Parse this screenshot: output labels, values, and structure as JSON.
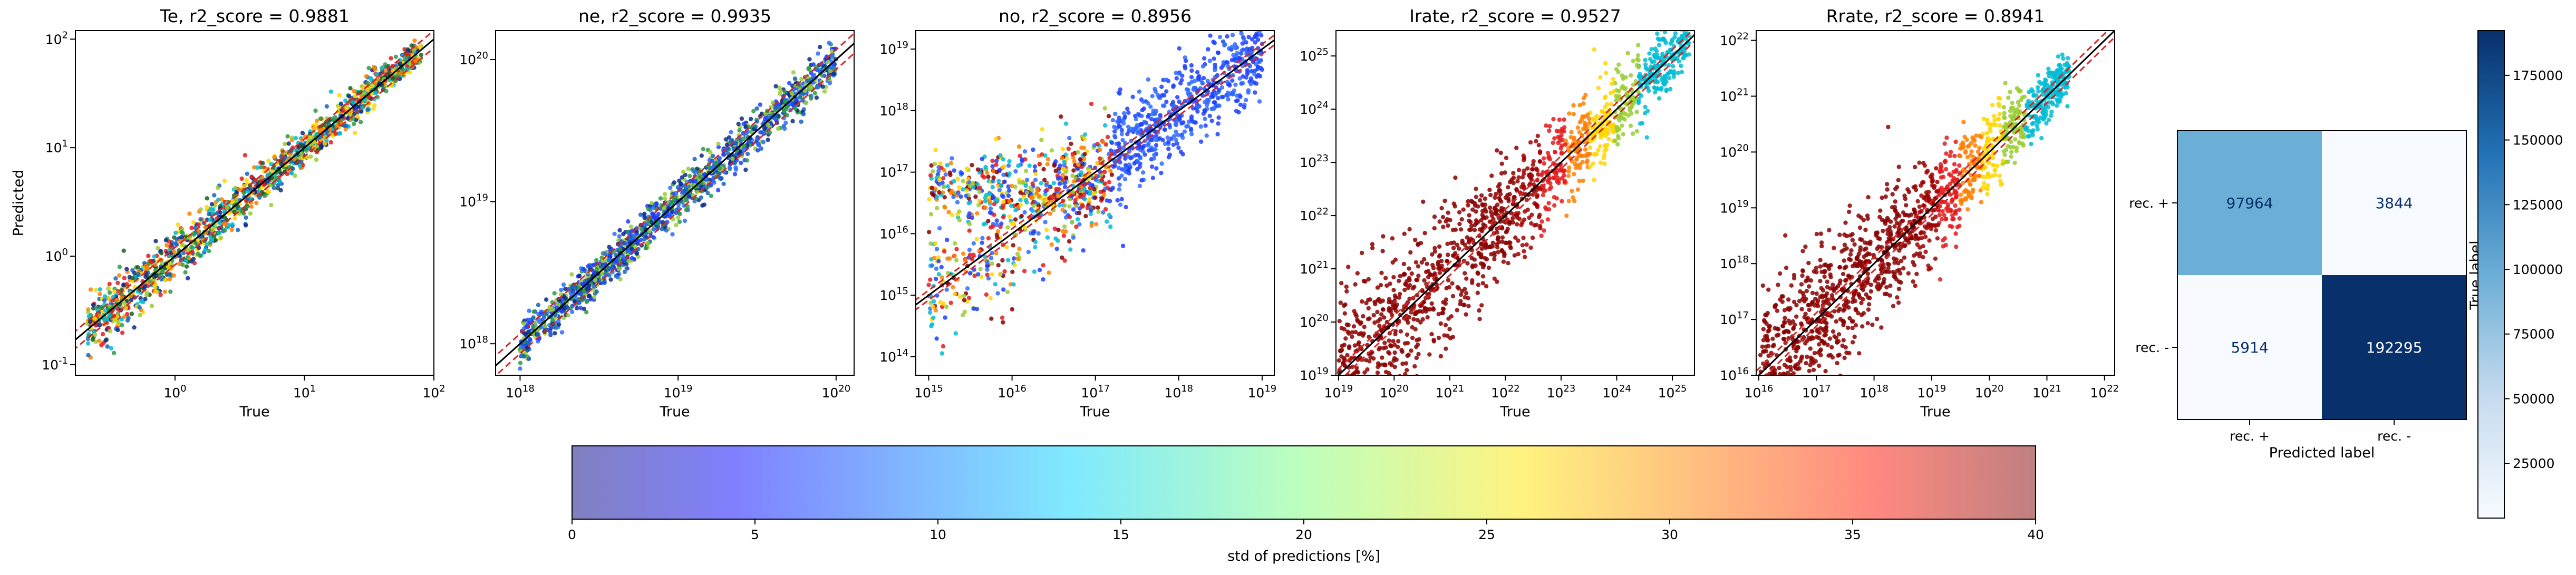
{
  "figure": {
    "colorbar_label": "std of predictions [%]",
    "colorbar_ticks": [
      "0",
      "5",
      "10",
      "15",
      "20",
      "25",
      "30",
      "35",
      "40"
    ],
    "colormap": "jet (alpha 0.5)",
    "cm_colorbar_ticks": [
      "25000",
      "50000",
      "75000",
      "100000",
      "125000",
      "150000",
      "175000"
    ]
  },
  "chart_data": [
    {
      "type": "scatter",
      "title": "Te, r2_score = 0.9881",
      "xlabel": "True",
      "ylabel": "Predicted",
      "xscale": "log",
      "yscale": "log",
      "xlim": [
        0.17,
        100
      ],
      "ylim": [
        0.08,
        120
      ],
      "x_ticks": [
        {
          "v": 1,
          "label": "10^0"
        },
        {
          "v": 10,
          "label": "10^1"
        },
        {
          "v": 100,
          "label": "10^2"
        }
      ],
      "y_ticks": [
        {
          "v": 0.1,
          "label": "10^-1"
        },
        {
          "v": 1,
          "label": "10^0"
        },
        {
          "v": 10,
          "label": "10^1"
        },
        {
          "v": 100,
          "label": "10^2"
        }
      ],
      "data_range": [
        0.21,
        80
      ],
      "spread_dex": 0.1,
      "band_dex": 0.08,
      "colors": [
        "#e41a1c",
        "#ff7f00",
        "#ffd700",
        "#9acd32",
        "#2e9a43",
        "#1b5e20",
        "#00bcd4",
        "#1565c0",
        "#0d2b8a"
      ],
      "density": "low-noise"
    },
    {
      "type": "scatter",
      "title": "ne, r2_score = 0.9935",
      "xlabel": "True",
      "ylabel": "",
      "xscale": "log",
      "yscale": "log",
      "xlim": [
        7e+17,
        1.3e+20
      ],
      "ylim": [
        6e+17,
        1.6e+20
      ],
      "x_ticks": [
        {
          "v": 1e+18,
          "label": "10^18"
        },
        {
          "v": 1e+19,
          "label": "10^19"
        },
        {
          "v": 1e+20,
          "label": "10^20"
        }
      ],
      "y_ticks": [
        {
          "v": 1e+18,
          "label": "10^18"
        },
        {
          "v": 1e+19,
          "label": "10^19"
        },
        {
          "v": 1e+20,
          "label": "10^20"
        }
      ],
      "data_range": [
        1e+18,
        1e+20
      ],
      "spread_dex": 0.07,
      "band_dex": 0.07,
      "colors": [
        "#0d2b8a",
        "#1565c0",
        "#1e40ff",
        "#2f6bff",
        "#2e9a43",
        "#9acd32"
      ],
      "density": "tight"
    },
    {
      "type": "scatter",
      "title": "no, r2_score = 0.8956",
      "xlabel": "True",
      "ylabel": "",
      "xscale": "log",
      "yscale": "log",
      "xlim": [
        700000000000000.0,
        1.4e+19
      ],
      "ylim": [
        50000000000000.0,
        2e+19
      ],
      "x_ticks": [
        {
          "v": 1000000000000000.0,
          "label": "10^15"
        },
        {
          "v": 1e+16,
          "label": "10^16"
        },
        {
          "v": 1e+17,
          "label": "10^17"
        },
        {
          "v": 1e+18,
          "label": "10^18"
        },
        {
          "v": 1e+19,
          "label": "10^19"
        }
      ],
      "y_ticks": [
        {
          "v": 100000000000000.0,
          "label": "10^14"
        },
        {
          "v": 1000000000000000.0,
          "label": "10^15"
        },
        {
          "v": 1e+16,
          "label": "10^16"
        },
        {
          "v": 1e+17,
          "label": "10^17"
        },
        {
          "v": 1e+18,
          "label": "10^18"
        },
        {
          "v": 1e+19,
          "label": "10^19"
        }
      ],
      "data_range": [
        1000000000000000.0,
        1e+19
      ],
      "spread_dex": 0.45,
      "band_dex": 0.08,
      "colors": [
        "#1e40ff",
        "#2f6bff",
        "#00bcd4",
        "#9acd32",
        "#ffd700",
        "#ff7f00",
        "#e41a1c",
        "#8b0000"
      ],
      "density": "plateau"
    },
    {
      "type": "scatter",
      "title": "Irate, r2_score = 0.9527",
      "xlabel": "True",
      "ylabel": "",
      "xscale": "log",
      "yscale": "log",
      "xlim": [
        9e+18,
        2.5e+25
      ],
      "ylim": [
        1e+19,
        3e+25
      ],
      "x_ticks": [
        {
          "v": 1e+19,
          "label": "10^19"
        },
        {
          "v": 1e+20,
          "label": "10^20"
        },
        {
          "v": 1e+21,
          "label": "10^21"
        },
        {
          "v": 1e+22,
          "label": "10^22"
        },
        {
          "v": 1e+23,
          "label": "10^23"
        },
        {
          "v": 1e+24,
          "label": "10^24"
        },
        {
          "v": 1e+25,
          "label": "10^25"
        }
      ],
      "y_ticks": [
        {
          "v": 1e+19,
          "label": "10^19"
        },
        {
          "v": 1e+20,
          "label": "10^20"
        },
        {
          "v": 1e+21,
          "label": "10^21"
        },
        {
          "v": 1e+22,
          "label": "10^22"
        },
        {
          "v": 1e+23,
          "label": "10^23"
        },
        {
          "v": 1e+24,
          "label": "10^24"
        },
        {
          "v": 1e+25,
          "label": "10^25"
        }
      ],
      "data_range": [
        1e+19,
        2e+25
      ],
      "spread_dex": 0.5,
      "band_dex": 0.12,
      "colors": [
        "#8b0000",
        "#8b0000",
        "#8b0000",
        "#a00000",
        "#e41a1c",
        "#ff7f00",
        "#ffd700",
        "#9acd32",
        "#00bcd4"
      ],
      "density": "wide-low"
    },
    {
      "type": "scatter",
      "title": "Rrate, r2_score = 0.8941",
      "xlabel": "True",
      "ylabel": "",
      "xscale": "log",
      "yscale": "log",
      "xlim": [
        9000000000000000.0,
        1.5e+22
      ],
      "ylim": [
        1e+16,
        1.5e+22
      ],
      "x_ticks": [
        {
          "v": 1e+16,
          "label": "10^16"
        },
        {
          "v": 1e+17,
          "label": "10^17"
        },
        {
          "v": 1e+18,
          "label": "10^18"
        },
        {
          "v": 1e+19,
          "label": "10^19"
        },
        {
          "v": 1e+20,
          "label": "10^20"
        },
        {
          "v": 1e+21,
          "label": "10^21"
        },
        {
          "v": 1e+22,
          "label": "10^22"
        }
      ],
      "y_ticks": [
        {
          "v": 1e+16,
          "label": "10^16"
        },
        {
          "v": 1e+17,
          "label": "10^17"
        },
        {
          "v": 1e+18,
          "label": "10^18"
        },
        {
          "v": 1e+19,
          "label": "10^19"
        },
        {
          "v": 1e+20,
          "label": "10^20"
        },
        {
          "v": 1e+21,
          "label": "10^21"
        },
        {
          "v": 1e+22,
          "label": "10^22"
        }
      ],
      "data_range": [
        1e+16,
        2.5e+21
      ],
      "spread_dex": 0.45,
      "band_dex": 0.12,
      "colors": [
        "#8b0000",
        "#8b0000",
        "#8b0000",
        "#a00000",
        "#e41a1c",
        "#ff7f00",
        "#ffd700",
        "#9acd32",
        "#00bcd4"
      ],
      "density": "wide-low"
    },
    {
      "type": "heatmap",
      "title": "",
      "xlabel": "Predicted label",
      "ylabel": "True label",
      "x_categories": [
        "rec. +",
        "rec. -"
      ],
      "y_categories": [
        "rec. +",
        "rec. -"
      ],
      "values": [
        [
          97964,
          3844
        ],
        [
          5914,
          192295
        ]
      ],
      "colormap": "Blues",
      "vmin": 3844,
      "vmax": 192295
    }
  ]
}
